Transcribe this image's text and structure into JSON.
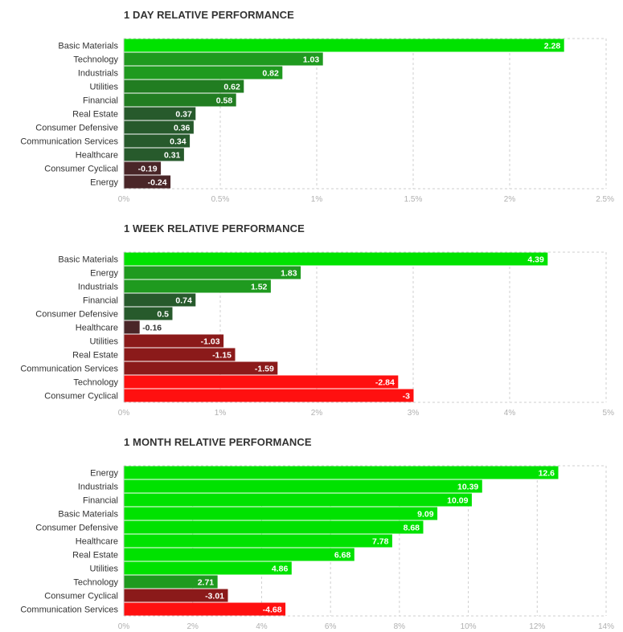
{
  "chart_data": [
    {
      "type": "bar",
      "orientation": "horizontal",
      "title": "1 DAY RELATIVE PERFORMANCE",
      "categories": [
        "Basic Materials",
        "Technology",
        "Industrials",
        "Utilities",
        "Financial",
        "Real Estate",
        "Consumer Defensive",
        "Communication Services",
        "Healthcare",
        "Consumer Cyclical",
        "Energy"
      ],
      "values": [
        2.28,
        1.03,
        0.82,
        0.62,
        0.58,
        0.37,
        0.36,
        0.34,
        0.31,
        -0.19,
        -0.24
      ],
      "value_labels": [
        "2.28",
        "1.03",
        "0.82",
        "0.62",
        "0.58",
        "0.37",
        "0.36",
        "0.34",
        "0.31",
        "-0.19",
        "-0.24"
      ],
      "colors": [
        "#00e200",
        "#1f9a1f",
        "#1f9a1f",
        "#217d21",
        "#217d21",
        "#275a2c",
        "#275a2c",
        "#275a2c",
        "#275a2c",
        "#4a2628",
        "#4a2628"
      ],
      "xlim": [
        0,
        2.5
      ],
      "ticks": [
        0,
        0.5,
        1,
        1.5,
        2,
        2.5
      ],
      "tick_labels": [
        "0%",
        "0.5%",
        "1%",
        "1.5%",
        "2%",
        "2.5%"
      ],
      "grid": true,
      "legend": "none"
    },
    {
      "type": "bar",
      "orientation": "horizontal",
      "title": "1 WEEK RELATIVE PERFORMANCE",
      "categories": [
        "Basic Materials",
        "Energy",
        "Industrials",
        "Financial",
        "Consumer Defensive",
        "Healthcare",
        "Utilities",
        "Real Estate",
        "Communication Services",
        "Technology",
        "Consumer Cyclical"
      ],
      "values": [
        4.39,
        1.83,
        1.52,
        0.74,
        0.5,
        -0.16,
        -1.03,
        -1.15,
        -1.59,
        -2.84,
        -3
      ],
      "value_labels": [
        "4.39",
        "1.83",
        "1.52",
        "0.74",
        "0.5",
        "-0.16",
        "-1.03",
        "-1.15",
        "-1.59",
        "-2.84",
        "-3"
      ],
      "colors": [
        "#00e200",
        "#1f9a1f",
        "#1f9a1f",
        "#275a2c",
        "#275a2c",
        "#4a2628",
        "#8b1a1a",
        "#8b1a1a",
        "#8b1a1a",
        "#ff1010",
        "#ff1010"
      ],
      "xlim": [
        0,
        5
      ],
      "ticks": [
        0,
        1,
        2,
        3,
        4,
        5
      ],
      "tick_labels": [
        "0%",
        "1%",
        "2%",
        "3%",
        "4%",
        "5%"
      ],
      "grid": true,
      "legend": "none"
    },
    {
      "type": "bar",
      "orientation": "horizontal",
      "title": "1 MONTH RELATIVE PERFORMANCE",
      "categories": [
        "Energy",
        "Industrials",
        "Financial",
        "Basic Materials",
        "Consumer Defensive",
        "Healthcare",
        "Real Estate",
        "Utilities",
        "Technology",
        "Consumer Cyclical",
        "Communication Services"
      ],
      "values": [
        12.6,
        10.39,
        10.09,
        9.09,
        8.68,
        7.78,
        6.68,
        4.86,
        2.71,
        -3.01,
        -4.68
      ],
      "value_labels": [
        "12.6",
        "10.39",
        "10.09",
        "9.09",
        "8.68",
        "7.78",
        "6.68",
        "4.86",
        "2.71",
        "-3.01",
        "-4.68"
      ],
      "colors": [
        "#00e200",
        "#00e200",
        "#00e200",
        "#00e200",
        "#00e200",
        "#00e200",
        "#00e200",
        "#00e200",
        "#1f9a1f",
        "#8b1a1a",
        "#ff1010"
      ],
      "xlim": [
        0,
        14
      ],
      "ticks": [
        0,
        2,
        4,
        6,
        8,
        10,
        12,
        14
      ],
      "tick_labels": [
        "0%",
        "2%",
        "4%",
        "6%",
        "8%",
        "10%",
        "12%",
        "14%"
      ],
      "grid": true,
      "legend": "none"
    }
  ]
}
